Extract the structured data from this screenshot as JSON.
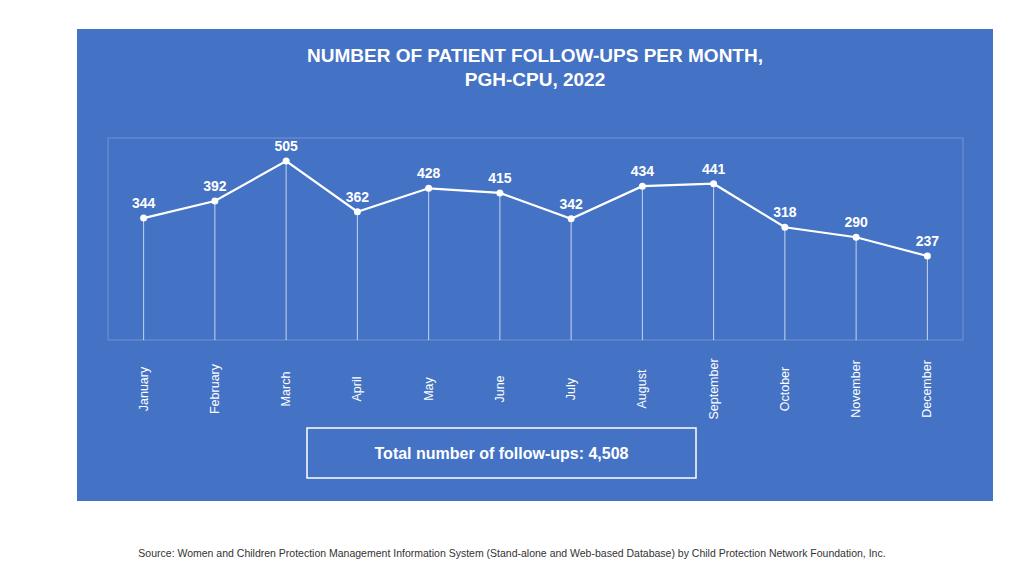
{
  "chart_data": {
    "type": "line",
    "title": "NUMBER OF PATIENT FOLLOW-UPS PER MONTH,\nPGH-CPU, 2022",
    "categories": [
      "January",
      "February",
      "March",
      "April",
      "May",
      "June",
      "July",
      "August",
      "September",
      "October",
      "November",
      "December"
    ],
    "values": [
      344,
      392,
      505,
      362,
      428,
      415,
      342,
      434,
      441,
      318,
      290,
      237
    ],
    "color": "#FFFFFF",
    "marker": "circle",
    "line_style": "solid",
    "ylim": [
      0,
      570
    ],
    "grid": false,
    "data_labels": true,
    "tick_labels": "x",
    "annotations": [
      "Total number of follow-ups: 4,508",
      "Source: Women and Children Protection Management Information System (Stand-alone and Web-based Database) by Child Protection Network Foundation, Inc."
    ]
  }
}
